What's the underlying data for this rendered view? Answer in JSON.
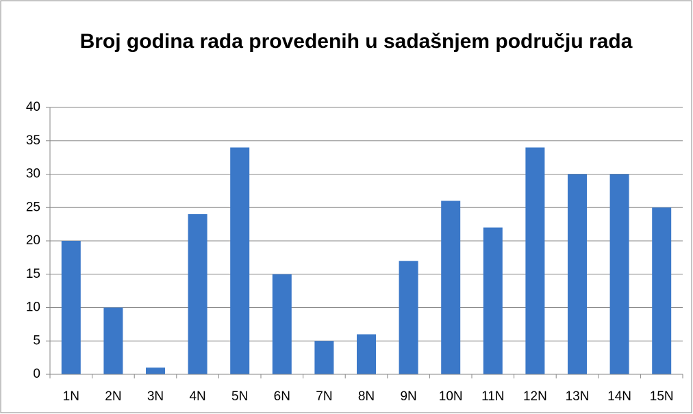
{
  "chart_data": {
    "type": "bar",
    "title": "Broj godina rada provedenih u sadašnjem području rada",
    "categories": [
      "1N",
      "2N",
      "3N",
      "4N",
      "5N",
      "6N",
      "7N",
      "8N",
      "9N",
      "10N",
      "11N",
      "12N",
      "13N",
      "14N",
      "15N"
    ],
    "values": [
      20,
      10,
      1,
      24,
      34,
      15,
      5,
      6,
      17,
      26,
      22,
      34,
      30,
      30,
      25
    ],
    "color": "#3b78c8",
    "ylim": [
      0,
      40
    ],
    "yticks": [
      0,
      5,
      10,
      15,
      20,
      25,
      30,
      35,
      40
    ],
    "grid": true
  }
}
